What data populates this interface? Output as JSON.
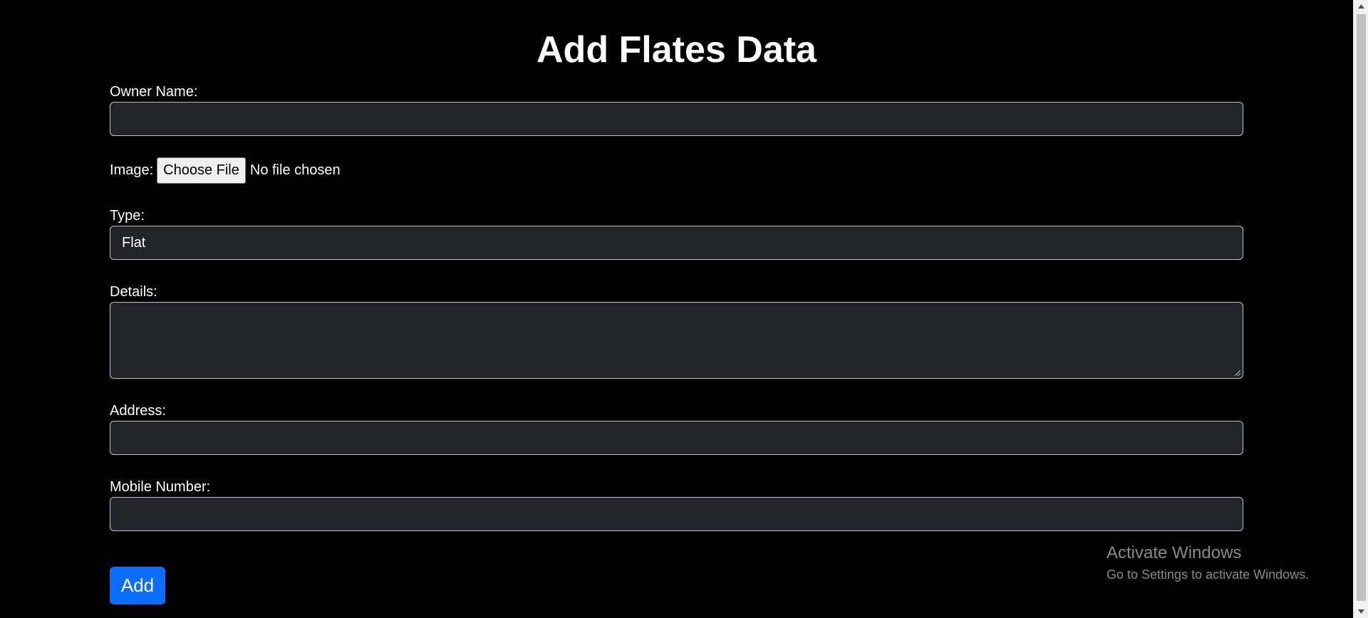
{
  "page": {
    "title": "Add Flates Data"
  },
  "form": {
    "owner_name_label": "Owner Name:",
    "owner_name_value": "",
    "image_label": "Image:",
    "file_button_label": "Choose File",
    "file_status": "No file chosen",
    "type_label": "Type:",
    "type_value": "Flat",
    "details_label": "Details:",
    "details_value": "",
    "address_label": "Address:",
    "address_value": "",
    "mobile_label": "Mobile Number:",
    "mobile_value": "",
    "submit_label": "Add"
  },
  "watermark": {
    "title": "Activate Windows",
    "subtitle": "Go to Settings to activate Windows."
  },
  "colors": {
    "background": "#000000",
    "field_background": "#212529",
    "primary_button": "#0d6efd"
  }
}
